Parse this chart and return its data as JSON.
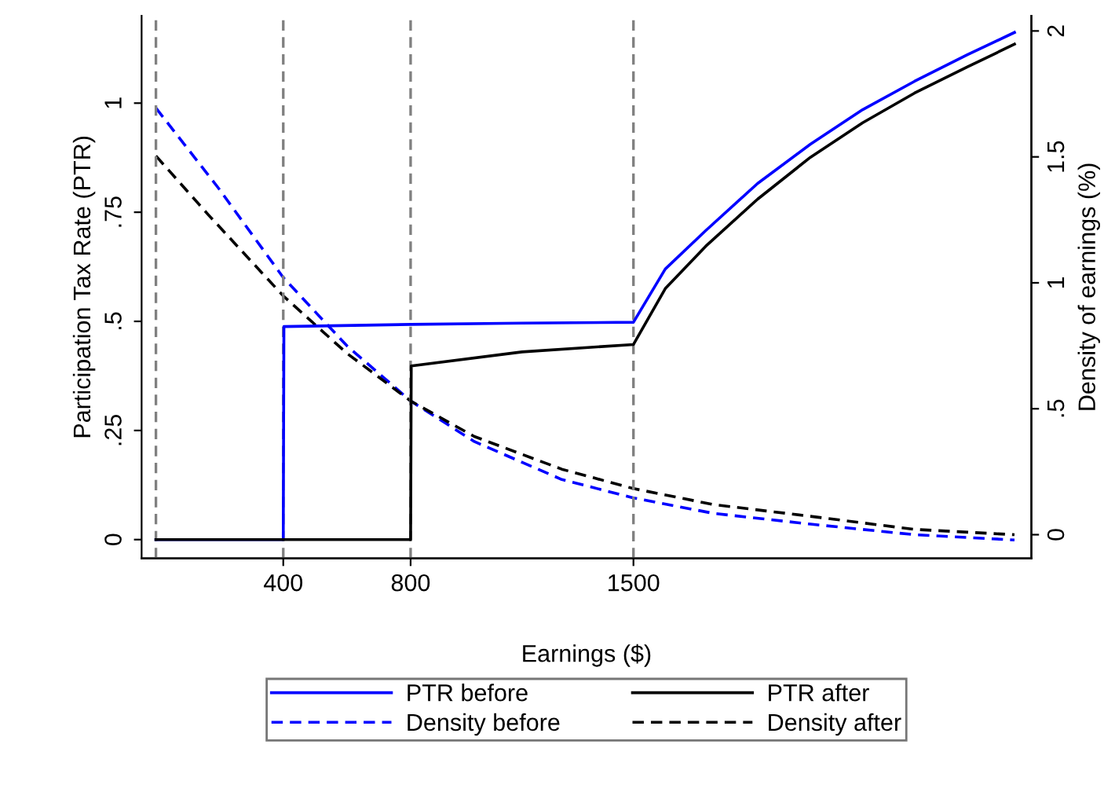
{
  "chart_data": {
    "type": "line",
    "xlabel": "Earnings ($)",
    "ylabel": "Participation Tax Rate (PTR)",
    "y2label": "Density of earnings (%)",
    "series": [
      {
        "name": "PTR before",
        "color": "#0000ff",
        "line_style": "solid",
        "x": [
          0,
          400,
          402,
          800,
          1150,
          1500,
          1600,
          1727,
          1890,
          2056,
          2220,
          2383,
          2549,
          2697
        ],
        "values": [
          0,
          0,
          0.488,
          0.493,
          0.496,
          0.498,
          0.62,
          0.708,
          0.816,
          0.906,
          0.985,
          1.05,
          1.111,
          1.162
        ]
      },
      {
        "name": "Density before",
        "color": "#0000ff",
        "line_style": "dashed",
        "axis": "y2",
        "x": [
          0,
          197,
          400,
          600,
          800,
          1000,
          1275,
          1500,
          1750,
          2056,
          2383,
          2697
        ],
        "values": [
          1.694,
          1.375,
          1.021,
          0.75,
          0.531,
          0.37,
          0.219,
          0.146,
          0.085,
          0.042,
          0.0,
          -0.021
        ]
      },
      {
        "name": "PTR after",
        "color": "#000000",
        "line_style": "solid",
        "x": [
          0,
          800,
          802,
          1150,
          1500,
          1600,
          1727,
          1890,
          2056,
          2220,
          2383,
          2549,
          2697
        ],
        "values": [
          0,
          0,
          0.398,
          0.43,
          0.447,
          0.575,
          0.672,
          0.78,
          0.876,
          0.955,
          1.023,
          1.083,
          1.135
        ]
      },
      {
        "name": "Density after",
        "color": "#000000",
        "line_style": "dashed",
        "axis": "y2",
        "x": [
          0,
          164,
          400,
          600,
          800,
          1000,
          1275,
          1500,
          1750,
          2056,
          2383,
          2697
        ],
        "values": [
          1.504,
          1.271,
          0.948,
          0.72,
          0.531,
          0.39,
          0.26,
          0.183,
          0.12,
          0.073,
          0.021,
          0.0
        ]
      }
    ],
    "xlim": [
      -45,
      2750
    ],
    "xticks": [
      400,
      800,
      1500
    ],
    "ylim": [
      -0.043,
      1.2
    ],
    "yticks": [
      0,
      {
        "value": 0.25,
        "label": ".25"
      },
      {
        "value": 0.5,
        "label": ".5"
      },
      {
        "value": 0.75,
        "label": ".75"
      },
      1
    ],
    "y2lim": [
      -0.094,
      2.06
    ],
    "y2ticks": [
      0,
      {
        "value": 0.5,
        "label": ".5"
      },
      1,
      {
        "value": 1.5,
        "label": "1.5"
      },
      2
    ],
    "ref_lines": [
      {
        "axis": "x",
        "value": 0,
        "color": "#808080",
        "line_style": "dashed"
      },
      {
        "axis": "x",
        "value": 400,
        "color": "#808080",
        "line_style": "dashed"
      },
      {
        "axis": "x",
        "value": 800,
        "color": "#808080",
        "line_style": "dashed"
      },
      {
        "axis": "x",
        "value": 1500,
        "color": "#808080",
        "line_style": "dashed"
      }
    ],
    "grid": false,
    "legend": "bottom"
  }
}
